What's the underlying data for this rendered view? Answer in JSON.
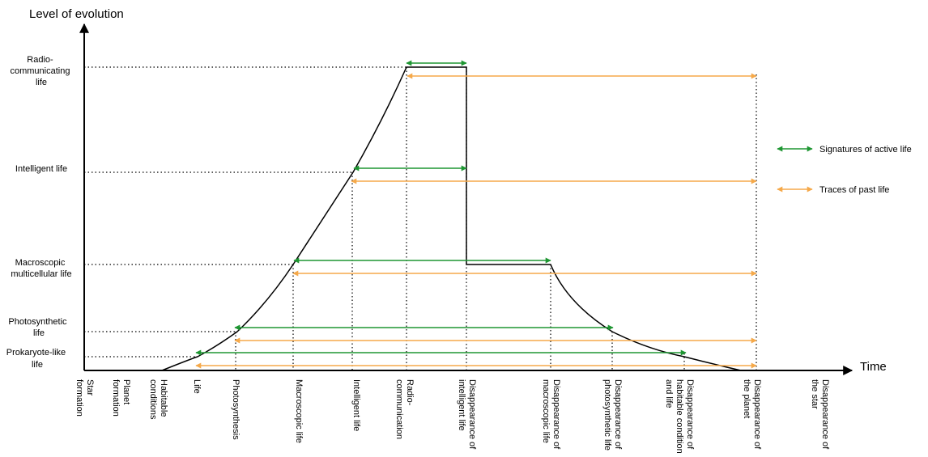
{
  "axes": {
    "y_title": "Level of evolution",
    "x_title": "Time"
  },
  "levels": [
    {
      "id": "radio",
      "lines": [
        "Radio-",
        "communicating",
        "life"
      ]
    },
    {
      "id": "intelligent",
      "lines": [
        "Intelligent  life"
      ]
    },
    {
      "id": "macroscopic",
      "lines": [
        "Macroscopic",
        "multicellular life"
      ]
    },
    {
      "id": "photosynthetic",
      "lines": [
        "Photosynthetic",
        "life"
      ]
    },
    {
      "id": "prokaryote",
      "lines": [
        "Prokaryote-like",
        "life"
      ]
    }
  ],
  "events": [
    {
      "id": "star-formation",
      "lines": [
        "Star",
        "formation"
      ]
    },
    {
      "id": "planet-formation",
      "lines": [
        "Planet",
        "formation"
      ]
    },
    {
      "id": "habitable-conditions",
      "lines": [
        "Habitable",
        "conditions"
      ]
    },
    {
      "id": "life",
      "lines": [
        "Life"
      ]
    },
    {
      "id": "photosynthesis",
      "lines": [
        "Photosynthesis"
      ]
    },
    {
      "id": "macroscopic-life",
      "lines": [
        "Macroscopic life"
      ]
    },
    {
      "id": "intelligent-life",
      "lines": [
        "Intelligent life"
      ]
    },
    {
      "id": "radio-communication",
      "lines": [
        "Radio-",
        "communication"
      ]
    },
    {
      "id": "disappearance-intelligent",
      "lines": [
        "Disappearance of",
        "intelligent life"
      ]
    },
    {
      "id": "disappearance-macroscopic",
      "lines": [
        "Disappearance of",
        "macroscopic life"
      ]
    },
    {
      "id": "disappearance-photosynthetic",
      "lines": [
        "Disappearance of",
        "photosynthetic life"
      ]
    },
    {
      "id": "disappearance-habitable",
      "lines": [
        "Disappearance of",
        "habitable condition",
        "and life"
      ]
    },
    {
      "id": "disappearance-planet",
      "lines": [
        "Disappearance of",
        "the planet"
      ]
    },
    {
      "id": "disappearance-star",
      "lines": [
        "Disappearance of",
        "the star"
      ]
    }
  ],
  "legend": {
    "active": "Signatures of active life",
    "past": "Traces of past life"
  },
  "colors": {
    "active": "#1e9632",
    "past": "#f5a94a",
    "ink": "#000000"
  }
}
